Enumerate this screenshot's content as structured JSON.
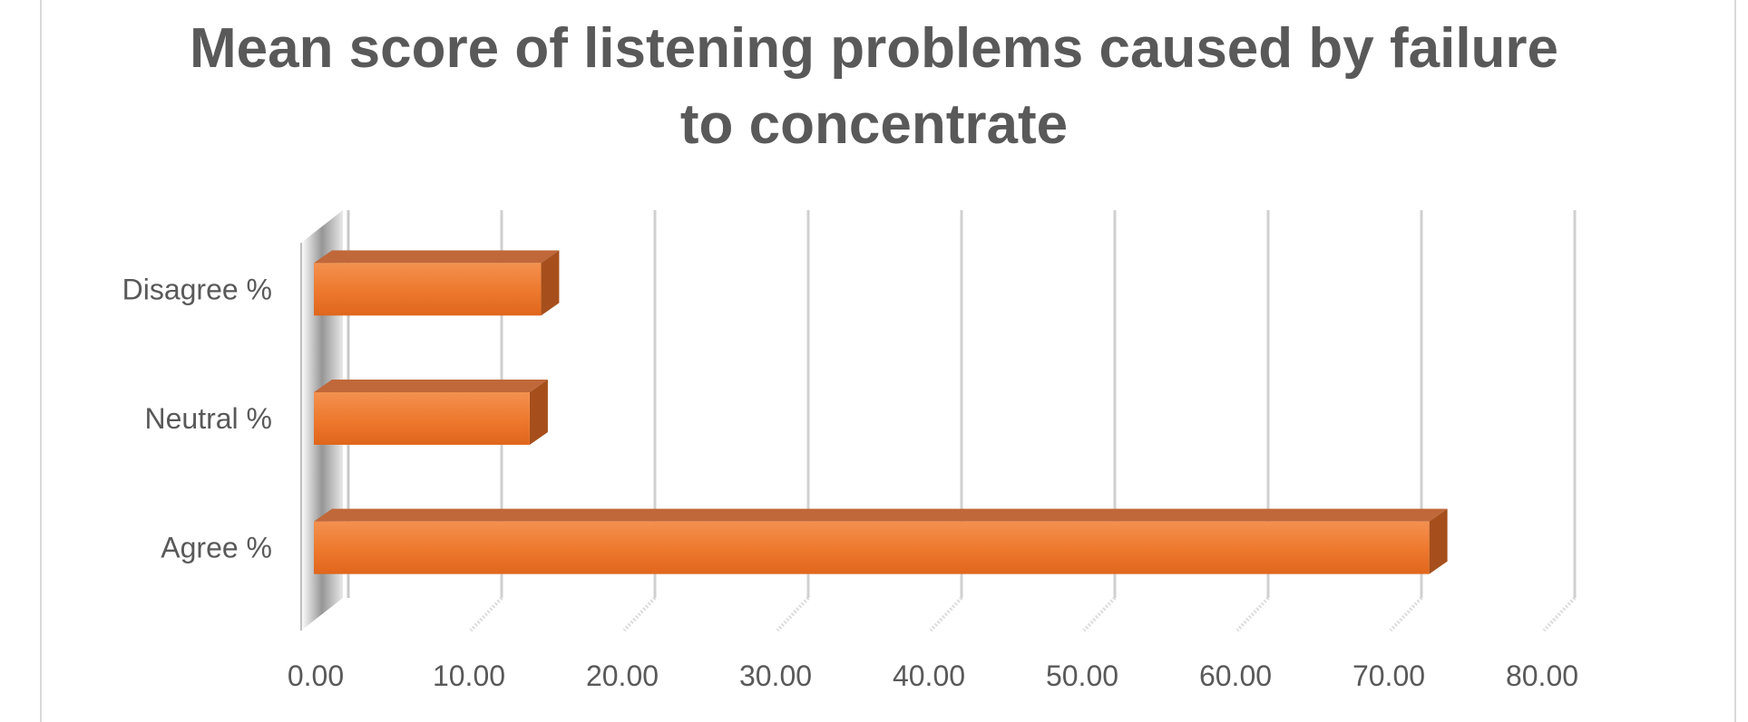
{
  "chart_data": {
    "type": "bar",
    "orientation": "horizontal",
    "style": "3d",
    "title": "Mean score of listening problems caused by failure to concentrate",
    "title_lines": [
      "Mean score of listening problems caused by failure",
      "to concentrate"
    ],
    "categories": [
      "Agree %",
      "Neutral %",
      "Disagree %"
    ],
    "values": [
      72.64,
      13.96,
      14.7
    ],
    "xlim": [
      0,
      80
    ],
    "xticks": [
      0,
      10,
      20,
      30,
      40,
      50,
      60,
      70,
      80
    ],
    "xtick_labels": [
      "0.00",
      "10.00",
      "20.00",
      "30.00",
      "40.00",
      "50.00",
      "60.00",
      "70.00",
      "80.00"
    ],
    "xlabel": "",
    "ylabel": "",
    "grid": "vertical",
    "legend": "none",
    "bar_color": "#ED7D31"
  }
}
